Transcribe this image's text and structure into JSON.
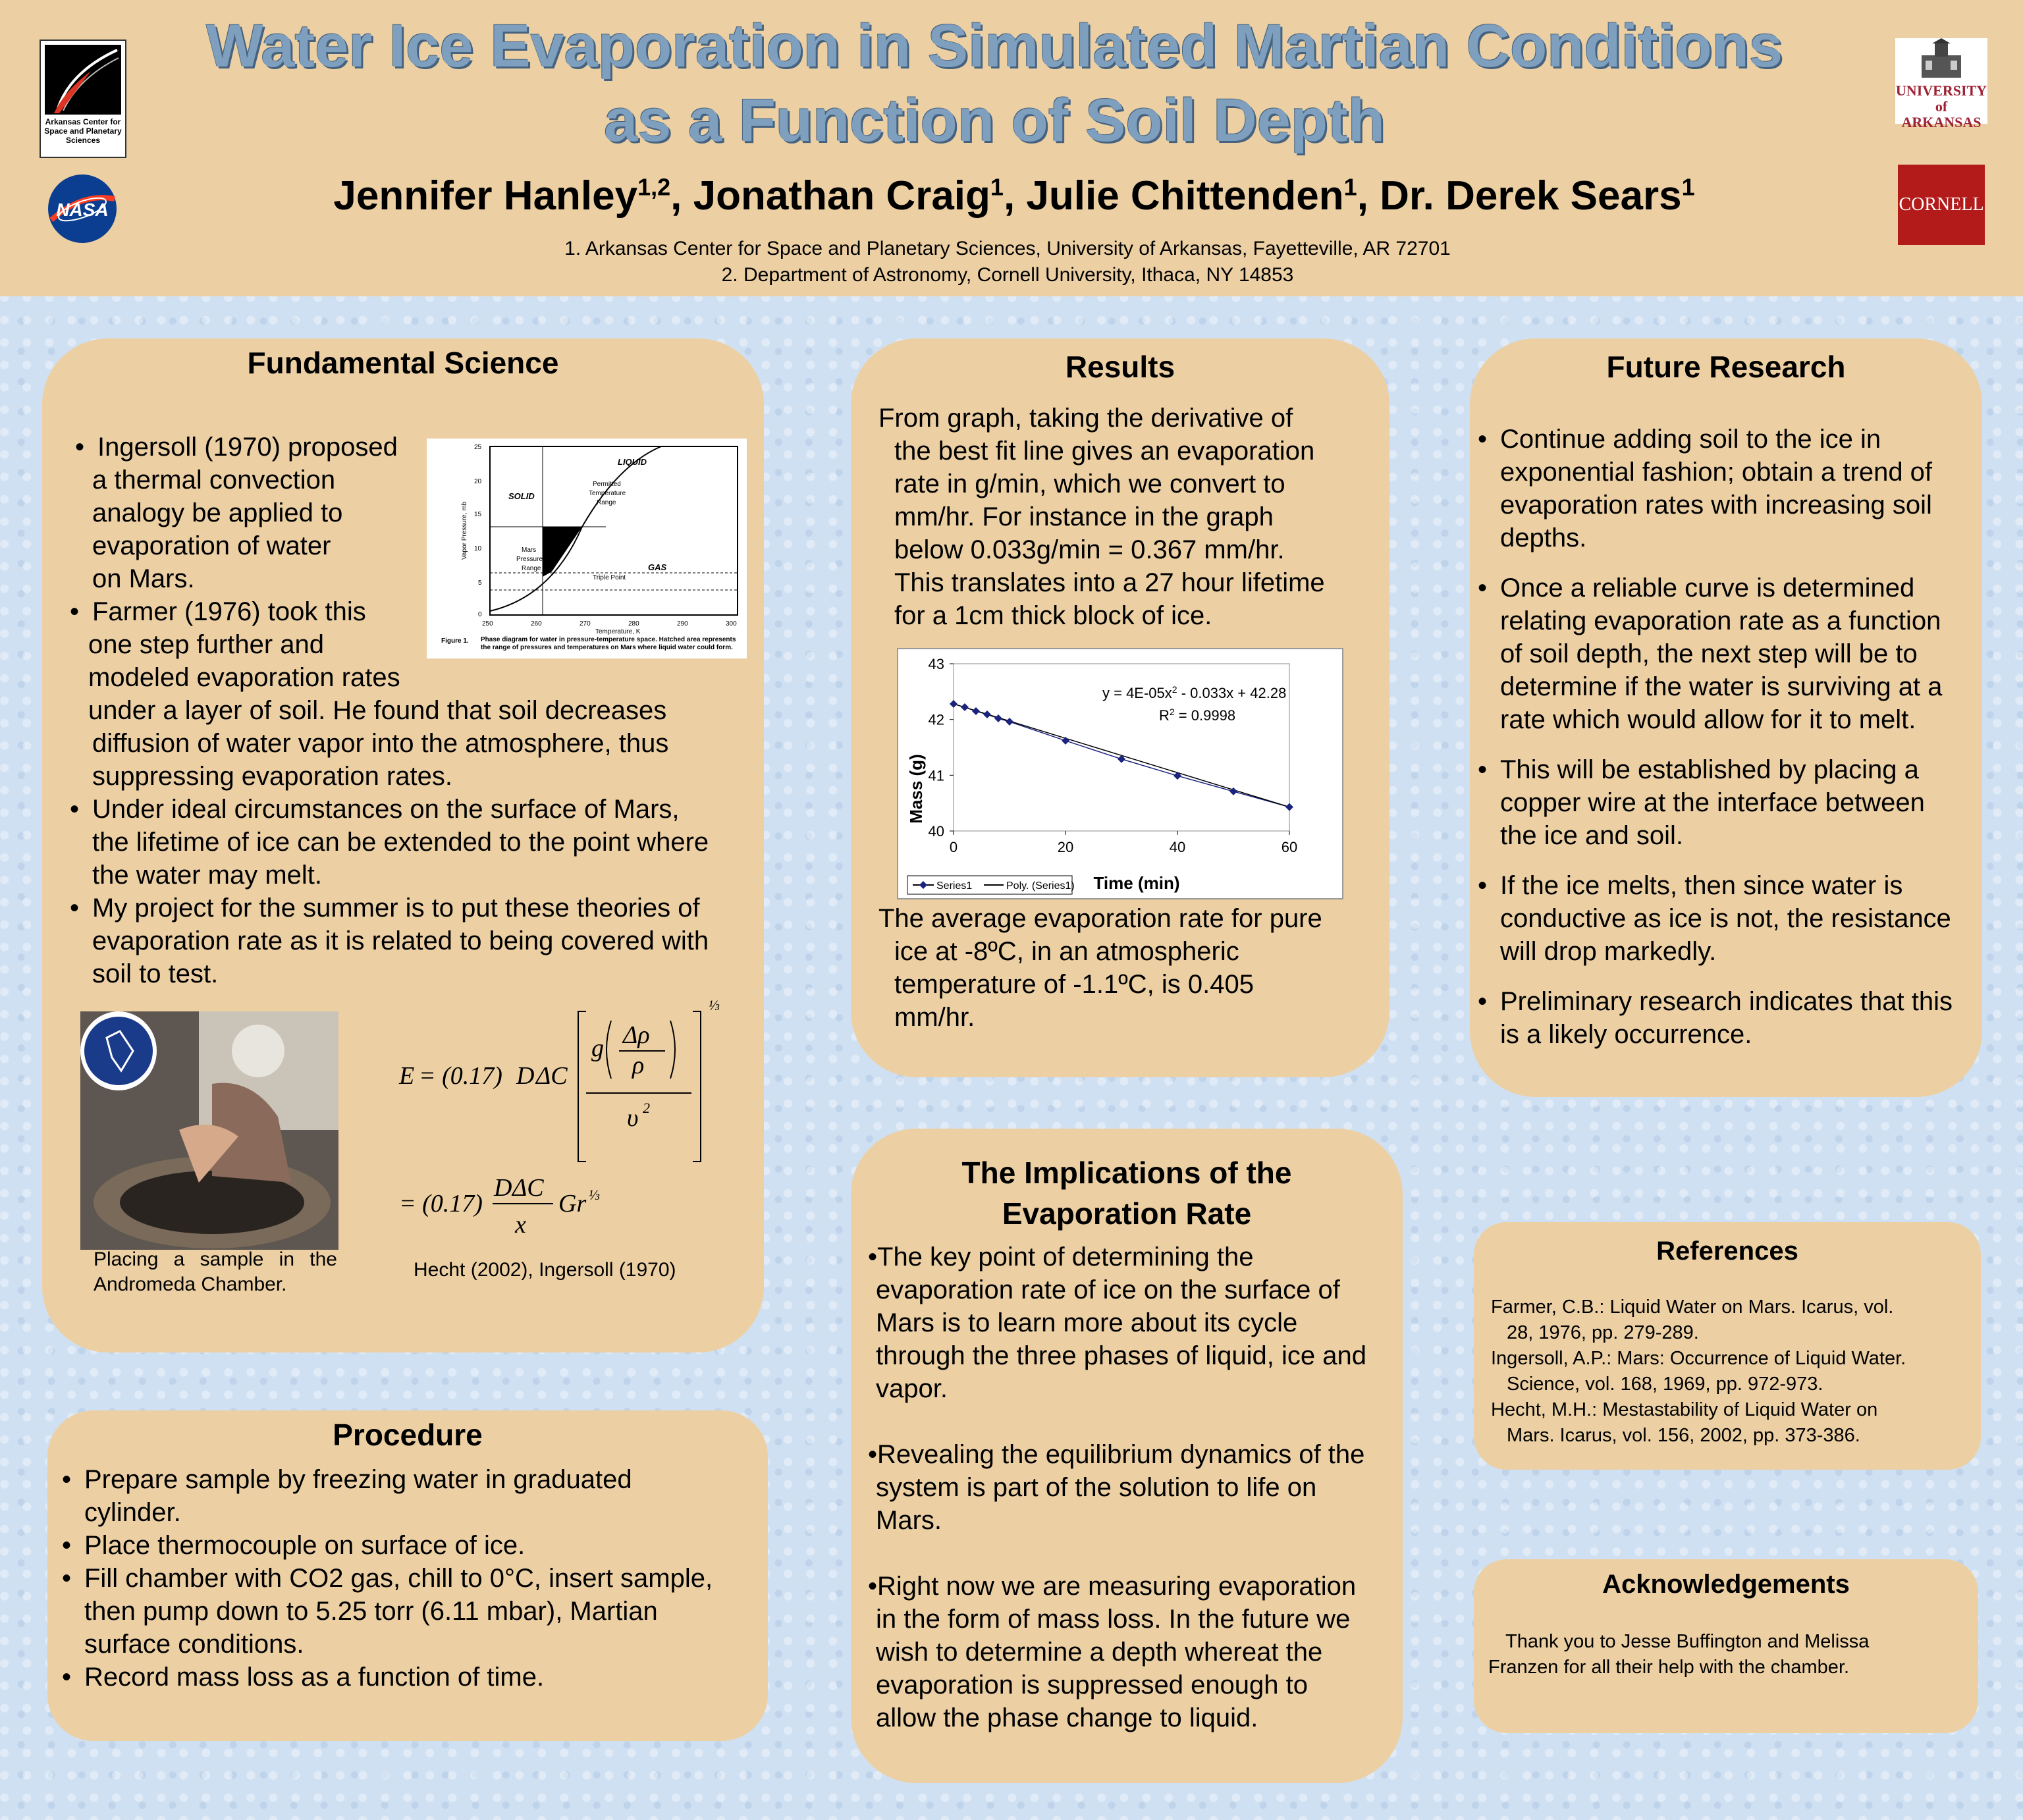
{
  "header": {
    "title_line1": "Water Ice Evaporation in Simulated Martian Conditions",
    "title_line2": "as a Function of Soil Depth",
    "authors": [
      {
        "name": "Jennifer Hanley",
        "sup": "1,2",
        "sep": ", "
      },
      {
        "name": "Jonathan Craig",
        "sup": "1",
        "sep": ", "
      },
      {
        "name": "Julie Chittenden",
        "sup": "1",
        "sep": ", "
      },
      {
        "name": "Dr. Derek Sears",
        "sup": "1",
        "sep": ""
      }
    ],
    "affiliation1": "1. Arkansas Center for Space and Planetary Sciences, University of Arkansas, Fayetteville, AR 72701",
    "affiliation2": "2. Department of Astronomy, Cornell University, Ithaca, NY 14853",
    "logos": {
      "acasp": "Arkansas Center for Space and Planetary Sciences",
      "nasa": "NASA",
      "ua_line1": "UNIVERSITY",
      "ua_line2": "of ARKANSAS",
      "cornell": "CORNELL"
    }
  },
  "fundamental": {
    "heading": "Fundamental Science",
    "bullet1": [
      "Ingersoll (1970) proposed",
      "a thermal convection",
      "analogy be applied to",
      "evaporation of water",
      "on Mars."
    ],
    "bullet2_narrow": [
      "Farmer (1976) took this",
      "one step further and",
      "modeled evaporation rates"
    ],
    "bullet2_wide": [
      "under a layer of soil. He found that soil decreases",
      "diffusion of water vapor into the atmosphere, thus",
      "suppressing evaporation rates."
    ],
    "bullet3": [
      "Under ideal circumstances on the surface of Mars,",
      "the lifetime of ice can be extended to the point where",
      "the water may melt."
    ],
    "bullet4": [
      "My project for the summer is to put these theories of",
      "evaporation rate as it is related to being covered with",
      "soil to test."
    ],
    "phase_diagram": {
      "labels": [
        "LIQUID",
        "SOLID",
        "GAS",
        "Permitted",
        "Temperature",
        "Range",
        "Mars",
        "Pressure",
        "Range",
        "Triple Point"
      ],
      "y_label": "Vapor Pressure, mb",
      "x_label": "Temperature, K",
      "y_ticks": [
        "25",
        "20",
        "15",
        "10",
        "5",
        "0"
      ],
      "x_ticks": [
        "250",
        "260",
        "270",
        "280",
        "290",
        "300"
      ],
      "caption_bold": "Figure 1.",
      "caption": "Phase diagram for water in pressure-temperature space. Hatched area represents the range of pressures and temperatures on Mars where liquid water could form."
    },
    "photo_caption": [
      "Placing a sample in the",
      "Andromeda Chamber."
    ],
    "formula_citation": "Hecht (2002), Ingersoll (1970)"
  },
  "procedure": {
    "heading": "Procedure",
    "items": [
      [
        "Prepare sample by freezing water in graduated",
        "cylinder."
      ],
      [
        "Place thermocouple on surface of ice."
      ],
      [
        "Fill chamber with CO2 gas, chill to 0°C, insert sample,",
        "then pump down to 5.25 torr (6.11 mbar), Martian",
        "surface conditions."
      ],
      [
        "Record mass loss as a function of time."
      ]
    ]
  },
  "results": {
    "heading": "Results",
    "para1": [
      "From graph, taking the derivative of",
      "the best fit line gives an evaporation",
      "rate in g/min, which we convert to",
      "mm/hr. For instance in the graph",
      "below 0.033g/min = 0.367 mm/hr.",
      "This translates into a 27 hour lifetime",
      "for a 1cm thick block of ice."
    ],
    "para2": [
      "The average evaporation rate for pure",
      "ice at -8ºC, in an atmospheric",
      "temperature of -1.1ºC, is 0.405",
      "mm/hr."
    ]
  },
  "chart_data": {
    "type": "scatter",
    "xlabel": "Time (min)",
    "ylabel": "Mass (g)",
    "xlim": [
      0,
      60
    ],
    "ylim": [
      40,
      43
    ],
    "x_ticks": [
      "0",
      "20",
      "40",
      "60"
    ],
    "y_ticks": [
      "40",
      "41",
      "42",
      "43"
    ],
    "series": [
      {
        "name": "Series1",
        "x": [
          0,
          2,
          4,
          6,
          8,
          10,
          20,
          30,
          40,
          50,
          60
        ],
        "y": [
          42.28,
          42.22,
          42.15,
          42.09,
          42.02,
          41.96,
          41.62,
          41.29,
          40.99,
          40.71,
          40.43
        ]
      },
      {
        "name": "Poly. (Series1)"
      }
    ],
    "annotation_line1": "y = 4E-05x",
    "annotation_line1_sup": "2",
    "annotation_line1_tail": " - 0.033x + 42.28",
    "annotation_line2": "R",
    "annotation_line2_sup": "2",
    "annotation_line2_tail": " = 0.9998",
    "legend": [
      "Series1",
      "Poly. (Series1)"
    ],
    "grid": false,
    "legend_position": "bottom-left"
  },
  "future": {
    "heading": "Future Research",
    "items": [
      [
        "Continue adding soil to the ice in",
        "exponential fashion; obtain a trend of",
        "evaporation rates with increasing soil",
        "depths."
      ],
      [
        "Once a reliable curve is determined",
        "relating evaporation rate as a function",
        "of soil depth, the next step will be to",
        "determine if the water is surviving at a",
        "rate which would allow for it to melt."
      ],
      [
        "This will be established by placing a",
        "copper wire at the interface between",
        "the ice and soil."
      ],
      [
        "If the ice melts, then since water is",
        "conductive as ice is not, the resistance",
        "will drop markedly."
      ],
      [
        "Preliminary research indicates that this",
        "is a likely occurrence."
      ]
    ]
  },
  "implications": {
    "heading_line1": "The Implications of the",
    "heading_line2": "Evaporation Rate",
    "para1": [
      "•The key point of determining the",
      "evaporation rate of ice on the surface of",
      "Mars is to learn more about its cycle",
      "through the three phases of liquid, ice and",
      "vapor."
    ],
    "para2": [
      "•Revealing the equilibrium dynamics of the",
      "system is part of the solution to life on",
      "Mars."
    ],
    "para3": [
      "•Right now we are measuring evaporation",
      "in the form of mass loss. In the future we",
      "wish to determine a depth whereat the",
      "evaporation is suppressed enough to",
      "allow the phase change to liquid."
    ]
  },
  "references": {
    "heading": "References",
    "lines": [
      "Farmer, C.B.: Liquid Water on Mars. Icarus, vol.",
      "28, 1976, pp. 279-289.",
      "Ingersoll, A.P.: Mars: Occurrence of Liquid Water.",
      "Science, vol. 168, 1969, pp. 972-973.",
      "Hecht, M.H.: Mestastability of Liquid Water on",
      "Mars. Icarus, vol. 156, 2002, pp. 373-386."
    ]
  },
  "acknowledgements": {
    "heading": "Acknowledgements",
    "lines": [
      "Thank you to Jesse Buffington and Melissa",
      "Franzen for all their help with the chamber."
    ]
  },
  "colors": {
    "header_bg": "#ecd0a4",
    "panel_bg": "#ecd0a4",
    "title": "#7e9fbe",
    "page_bg": "#cfe0f2"
  }
}
